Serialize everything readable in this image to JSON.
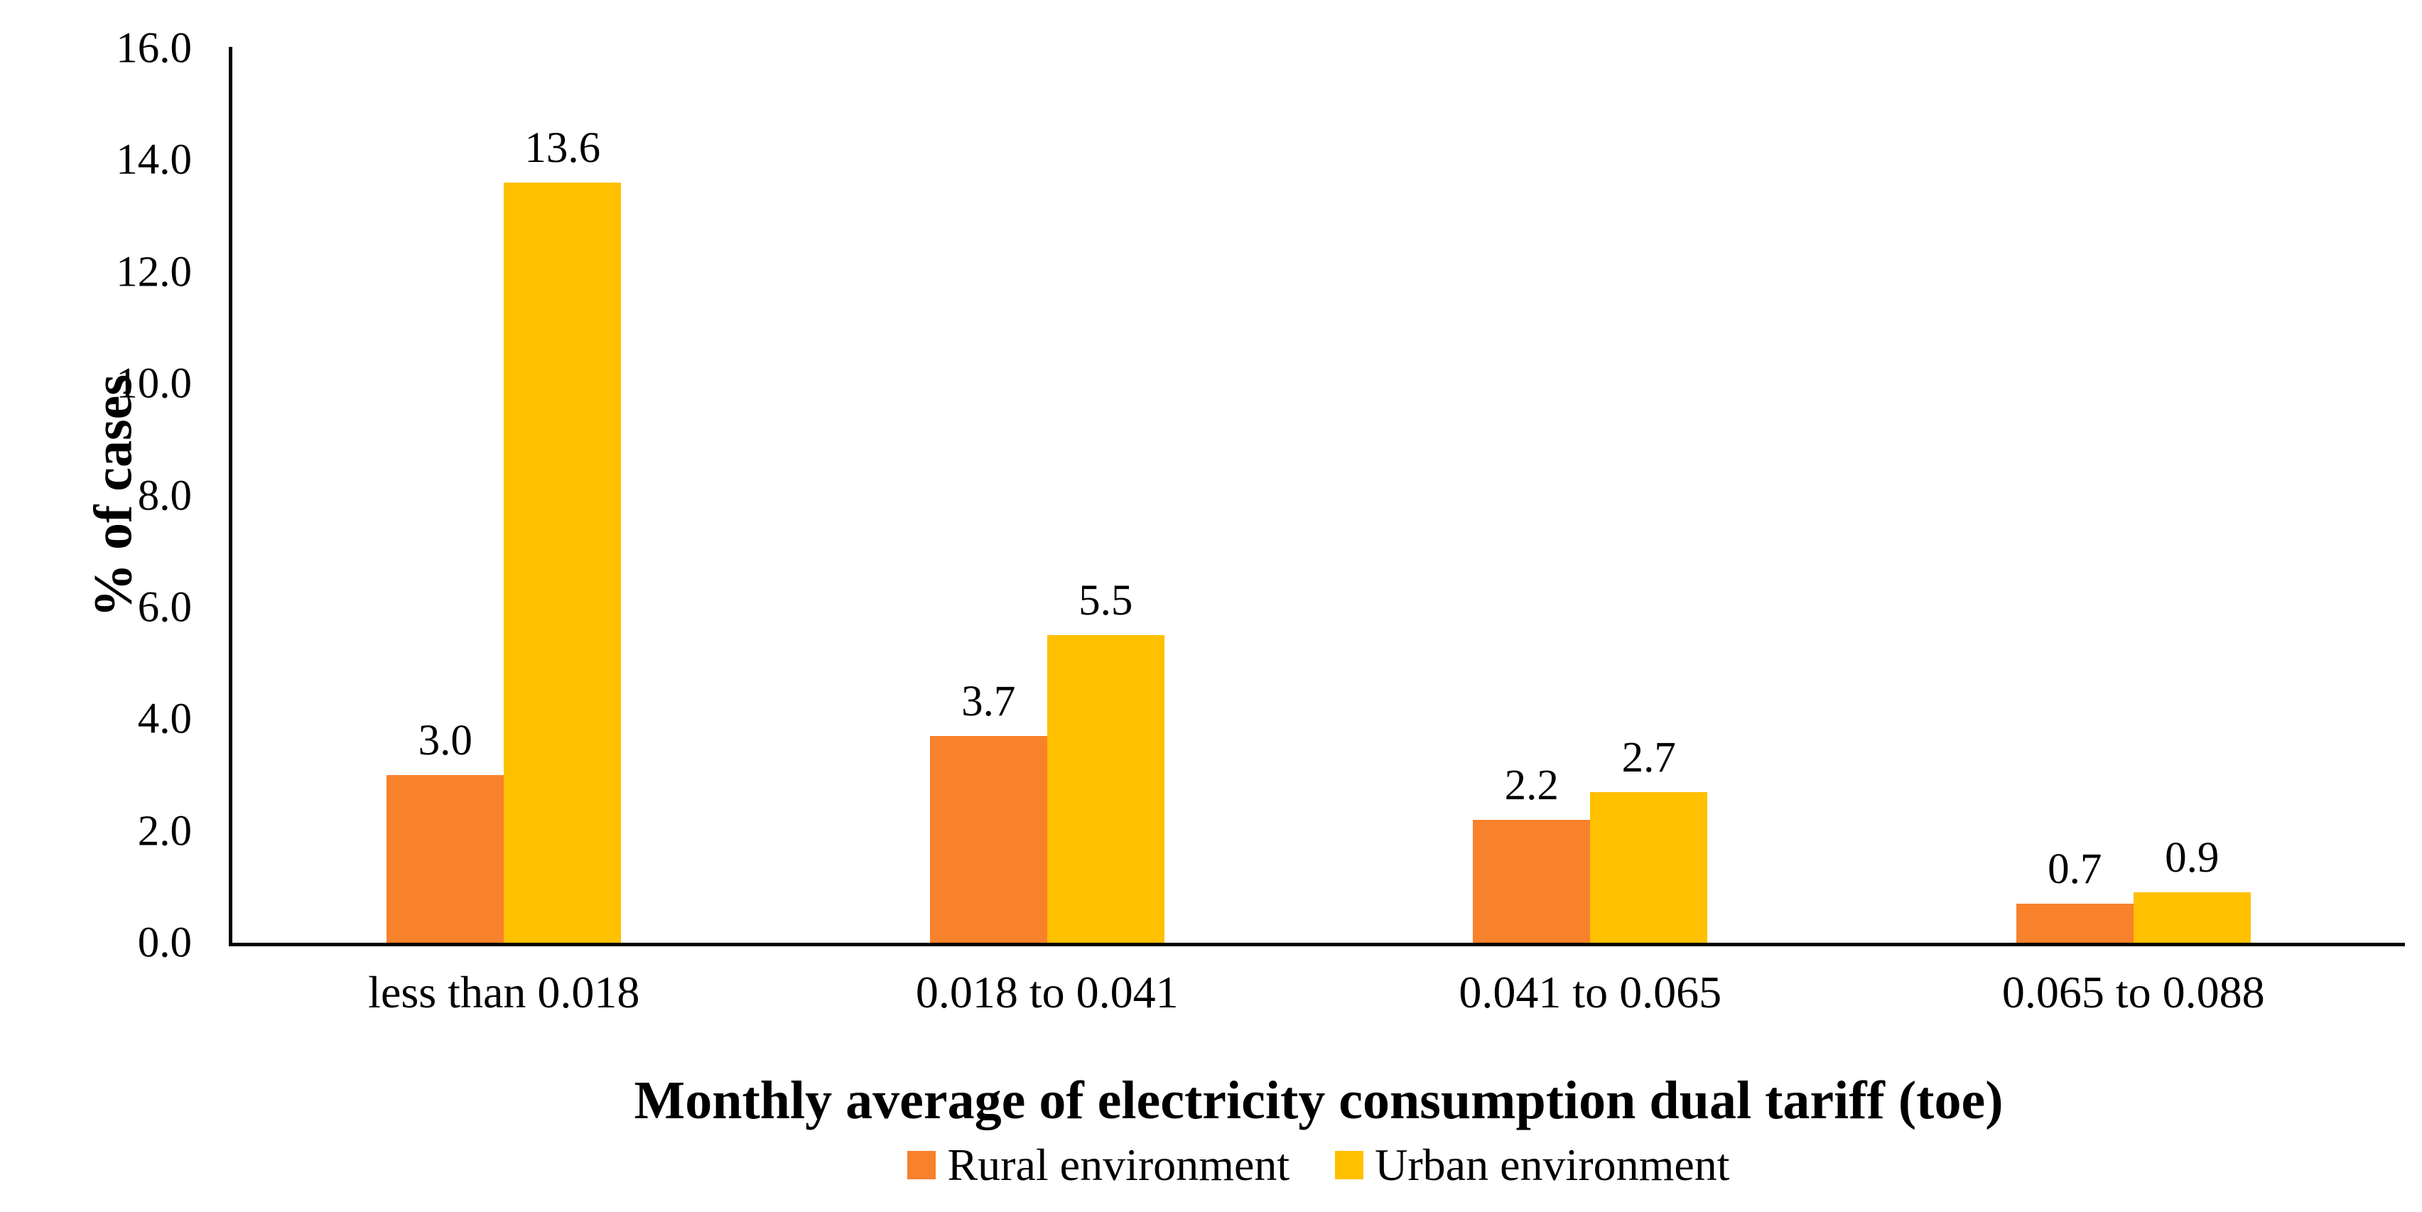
{
  "background": "#ffffff",
  "chart_data": {
    "type": "bar",
    "title": "",
    "categories": [
      "less than 0.018",
      "0.018 to 0.041",
      "0.041 to 0.065",
      "0.065 to 0.088"
    ],
    "series": [
      {
        "name": "Rural environment",
        "color": "#F8812C",
        "values": [
          3.0,
          3.7,
          2.2,
          0.7
        ]
      },
      {
        "name": "Urban environment",
        "color": "#FFC000",
        "values": [
          13.6,
          5.5,
          2.7,
          0.9
        ]
      }
    ],
    "xlabel": "Monthly average of electricity consumption dual tariff (toe)",
    "ylabel": "% of cases",
    "ylim": [
      0,
      16
    ],
    "ytick_step": 2,
    "ytick_labels": [
      "0.0",
      "2.0",
      "4.0",
      "6.0",
      "8.0",
      "10.0",
      "12.0",
      "14.0",
      "16.0"
    ],
    "grid": false,
    "legend_position": "bottom-center",
    "data_labels": true,
    "data_label_decimals": 1,
    "axis_color": "#000000",
    "text_color": "#000000"
  }
}
